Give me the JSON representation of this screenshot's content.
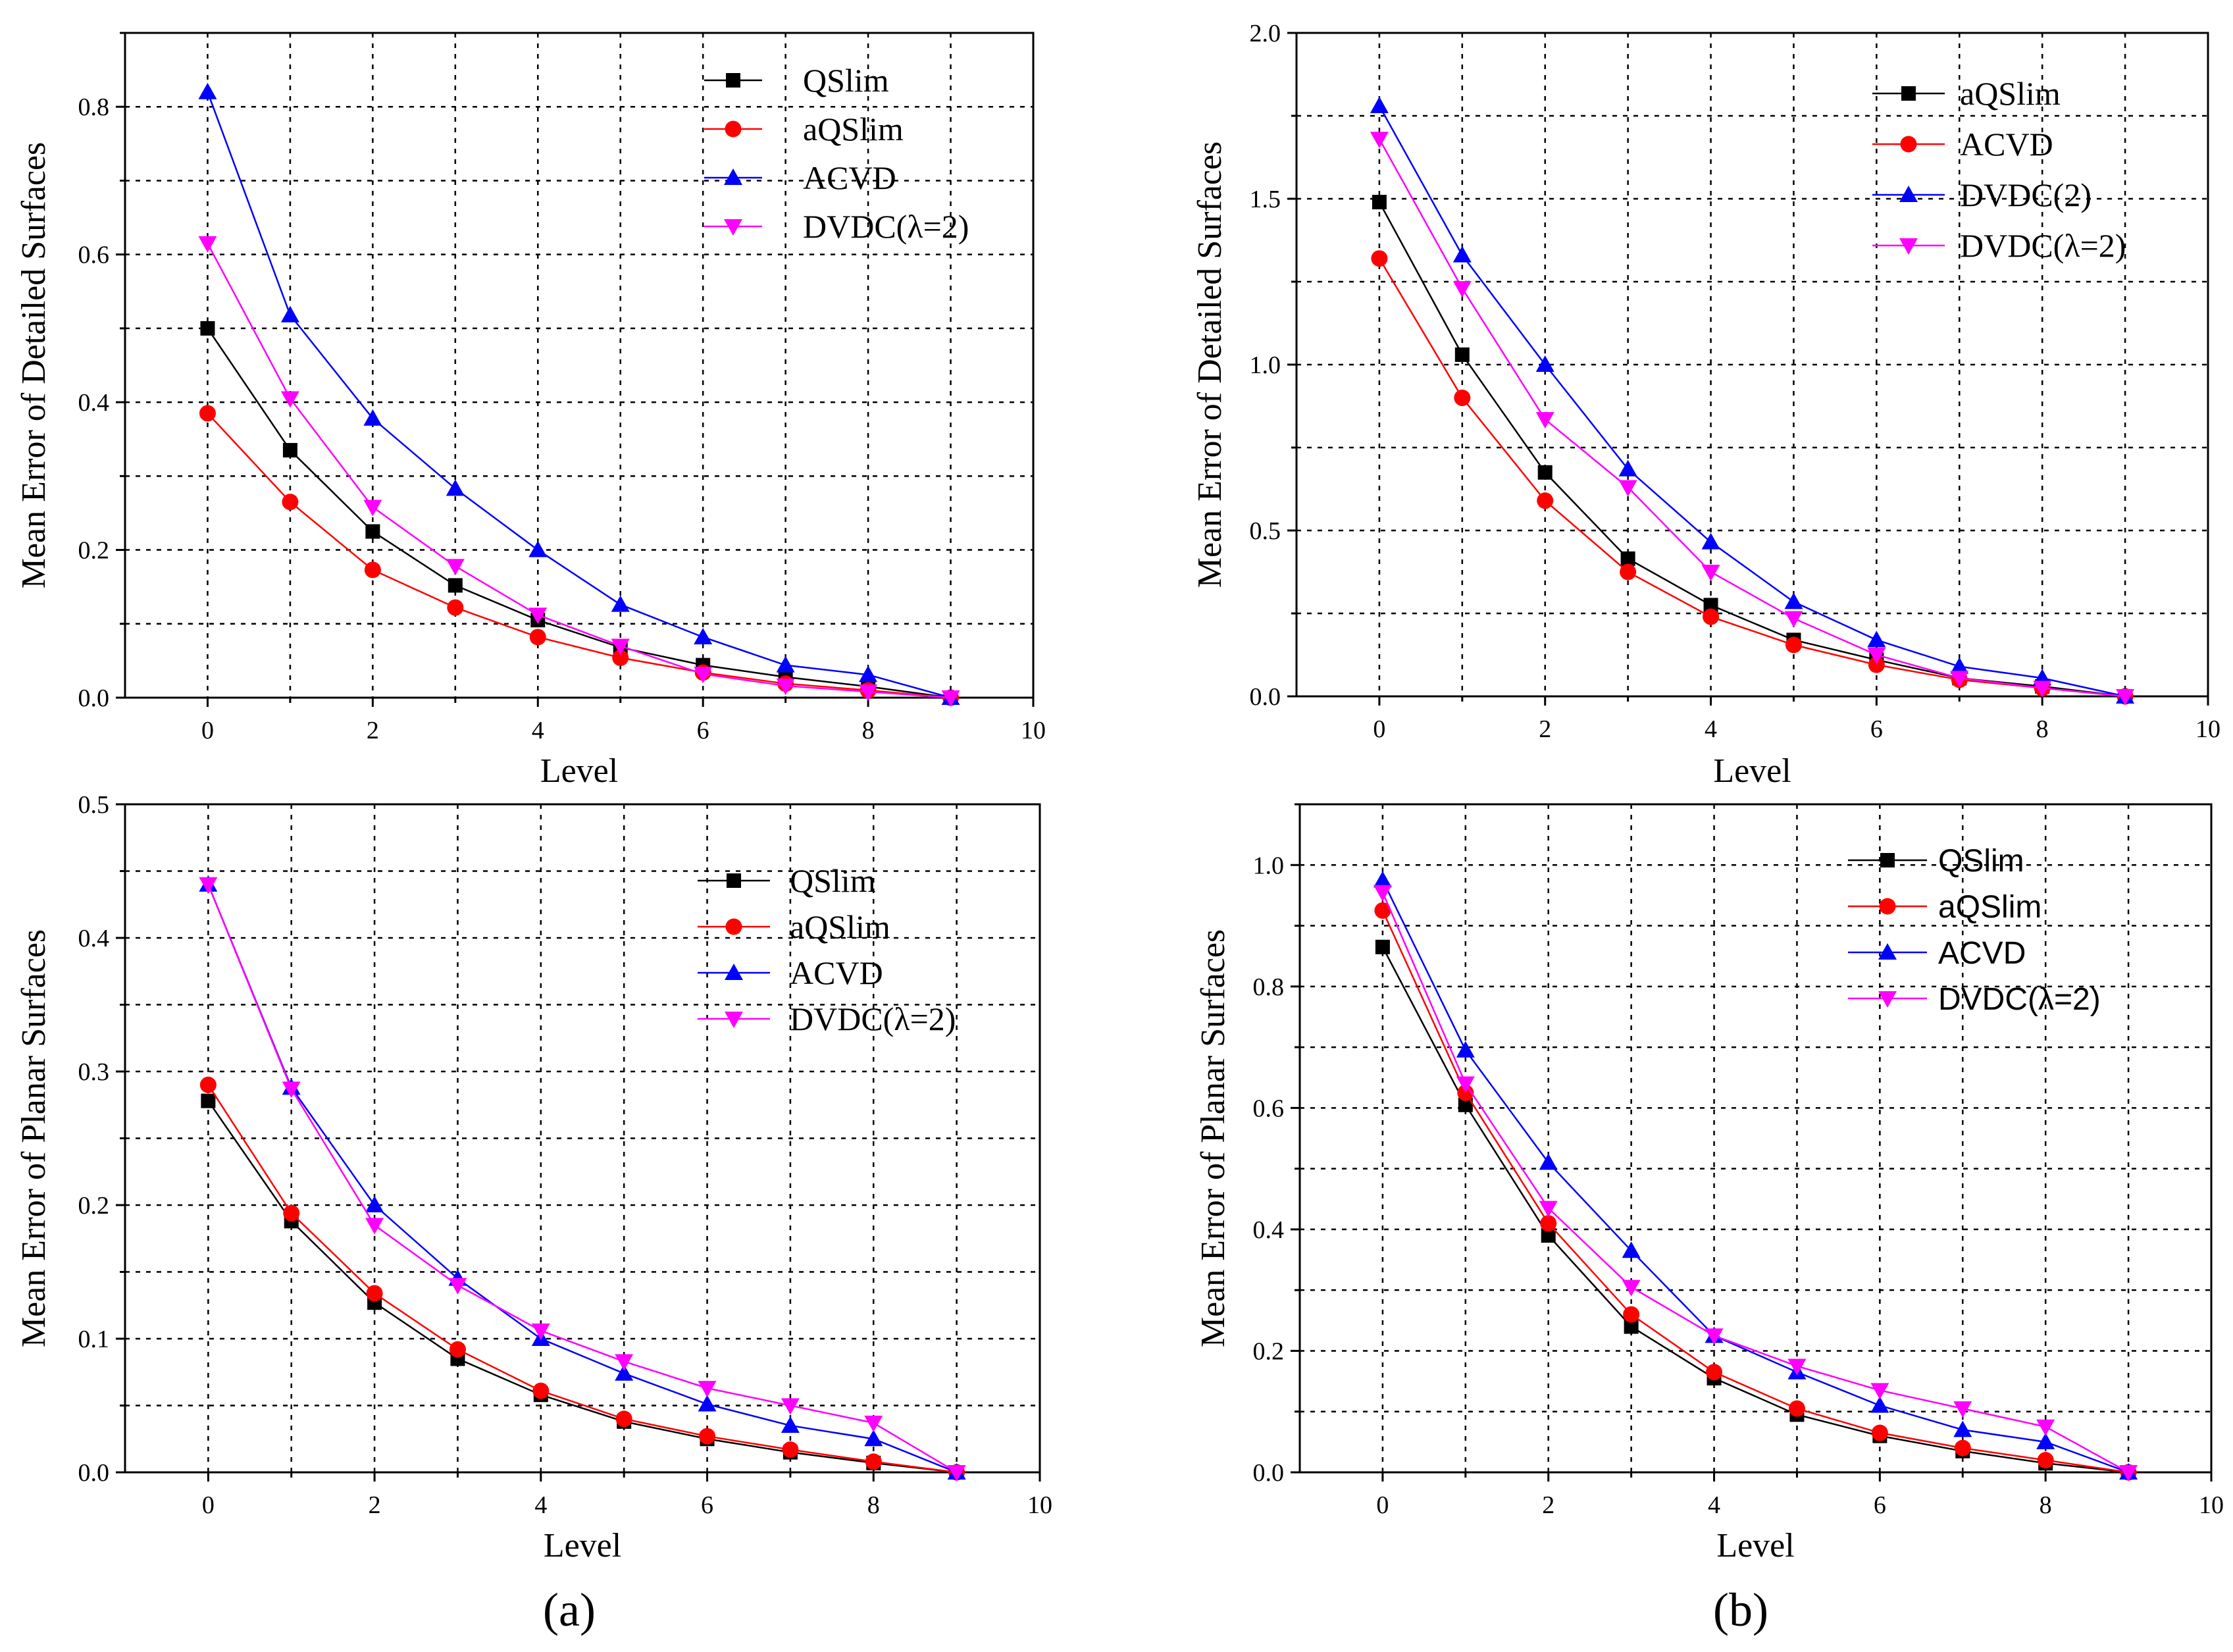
{
  "figure": {
    "panel_labels": [
      "(a)",
      "(b)"
    ],
    "panel_label_letters": [
      "a",
      "b"
    ]
  },
  "series_styles": {
    "QSlim": {
      "color": "#000000",
      "marker": "square"
    },
    "aQSlim": {
      "color": "#ff0000",
      "marker": "circle"
    },
    "ACVD": {
      "color": "#0000ff",
      "marker": "triangle-up"
    },
    "DVDC": {
      "color": "#ff00ff",
      "marker": "triangle-down"
    }
  },
  "chart_data": [
    {
      "id": "top-left",
      "type": "line",
      "title": "",
      "xlabel": "Level",
      "ylabel": "Mean Error of Detailed Surfaces",
      "xlim": [
        -1,
        10
      ],
      "ylim": [
        0,
        0.9
      ],
      "xticks": [
        0,
        2,
        4,
        6,
        8,
        10
      ],
      "yticks": [
        0.0,
        0.2,
        0.4,
        0.6,
        0.8
      ],
      "ytick_labels": [
        "0.0",
        "0.2",
        "0.4",
        "0.6",
        "0.8"
      ],
      "grid": true,
      "legend_position": "top-right",
      "x": [
        0,
        1,
        2,
        3,
        4,
        5,
        6,
        7,
        8,
        9
      ],
      "series": [
        {
          "name": "QSlim",
          "style": "QSlim",
          "values": [
            0.5,
            0.335,
            0.225,
            0.152,
            0.105,
            0.068,
            0.044,
            0.028,
            0.015,
            0.0
          ]
        },
        {
          "name": "aQSlim",
          "style": "aQSlim",
          "values": [
            0.385,
            0.265,
            0.173,
            0.122,
            0.082,
            0.054,
            0.034,
            0.019,
            0.01,
            0.0
          ]
        },
        {
          "name": "ACVD",
          "style": "ACVD",
          "values": [
            0.82,
            0.518,
            0.378,
            0.283,
            0.2,
            0.126,
            0.082,
            0.044,
            0.031,
            0.0
          ]
        },
        {
          "name": "DVDC(λ=2)",
          "style": "DVDC",
          "values": [
            0.615,
            0.405,
            0.258,
            0.178,
            0.112,
            0.07,
            0.032,
            0.016,
            0.008,
            0.0
          ]
        }
      ]
    },
    {
      "id": "top-right",
      "type": "line",
      "title": "",
      "xlabel": "Level",
      "ylabel": "Mean Error of Detailed Surfaces",
      "xlim": [
        -1,
        10
      ],
      "ylim": [
        0,
        2.0
      ],
      "xticks": [
        0,
        2,
        4,
        6,
        8,
        10
      ],
      "yticks": [
        0.0,
        0.5,
        1.0,
        1.5,
        2.0
      ],
      "ytick_labels": [
        "0.0",
        "0.5",
        "1.0",
        "1.5",
        "2.0"
      ],
      "grid": true,
      "legend_position": "top-right",
      "x": [
        0,
        1,
        2,
        3,
        4,
        5,
        6,
        7,
        8,
        9
      ],
      "series": [
        {
          "name": "aQSlim",
          "style": "QSlim",
          "values": [
            1.49,
            1.03,
            0.675,
            0.415,
            0.275,
            0.17,
            0.11,
            0.055,
            0.03,
            0.0
          ]
        },
        {
          "name": "ACVD",
          "style": "aQSlim",
          "values": [
            1.32,
            0.9,
            0.59,
            0.375,
            0.24,
            0.155,
            0.095,
            0.05,
            0.025,
            0.0
          ]
        },
        {
          "name": "DVDC(2)",
          "style": "ACVD",
          "values": [
            1.78,
            1.33,
            1.0,
            0.685,
            0.465,
            0.285,
            0.17,
            0.09,
            0.055,
            0.0
          ]
        },
        {
          "name": "DVDC(λ=2)",
          "style": "DVDC",
          "values": [
            1.68,
            1.23,
            0.835,
            0.63,
            0.375,
            0.235,
            0.125,
            0.055,
            0.025,
            0.0
          ]
        }
      ]
    },
    {
      "id": "bottom-left",
      "type": "line",
      "title": "",
      "xlabel": "Level",
      "ylabel": "Mean Error of Planar Surfaces",
      "xlim": [
        -1,
        10
      ],
      "ylim": [
        0,
        0.5
      ],
      "xticks": [
        0,
        2,
        4,
        6,
        8,
        10
      ],
      "yticks": [
        0.0,
        0.1,
        0.2,
        0.3,
        0.4,
        0.5
      ],
      "ytick_labels": [
        "0.0",
        "0.1",
        "0.2",
        "0.3",
        "0.4",
        "0.5"
      ],
      "grid": true,
      "legend_position": "top-right",
      "x": [
        0,
        1,
        2,
        3,
        4,
        5,
        6,
        7,
        8,
        9
      ],
      "series": [
        {
          "name": "QSlim",
          "style": "QSlim",
          "values": [
            0.278,
            0.188,
            0.127,
            0.085,
            0.058,
            0.038,
            0.025,
            0.015,
            0.007,
            0.0
          ]
        },
        {
          "name": "aQSlim",
          "style": "aQSlim",
          "values": [
            0.29,
            0.194,
            0.134,
            0.092,
            0.061,
            0.04,
            0.027,
            0.017,
            0.008,
            0.0
          ]
        },
        {
          "name": "ACVD",
          "style": "ACVD",
          "values": [
            0.44,
            0.288,
            0.2,
            0.145,
            0.1,
            0.074,
            0.051,
            0.035,
            0.025,
            0.0
          ]
        },
        {
          "name": "DVDC(λ=2)",
          "style": "DVDC",
          "values": [
            0.44,
            0.287,
            0.185,
            0.14,
            0.106,
            0.083,
            0.063,
            0.05,
            0.037,
            0.0
          ]
        }
      ]
    },
    {
      "id": "bottom-right",
      "type": "line",
      "title": "",
      "xlabel": "Level",
      "ylabel": "Mean Error of Planar Surfaces",
      "xlim": [
        -1,
        10
      ],
      "ylim": [
        0,
        1.1
      ],
      "xticks": [
        0,
        2,
        4,
        6,
        8,
        10
      ],
      "yticks": [
        0.0,
        0.2,
        0.4,
        0.6,
        0.8,
        1.0
      ],
      "ytick_labels": [
        "0.0",
        "0.2",
        "0.4",
        "0.6",
        "0.8",
        "1.0"
      ],
      "grid": true,
      "legend_position": "top-right",
      "x": [
        0,
        1,
        2,
        3,
        4,
        5,
        6,
        7,
        8,
        9
      ],
      "series": [
        {
          "name": "QSlim",
          "style": "QSlim",
          "values": [
            0.865,
            0.605,
            0.39,
            0.24,
            0.155,
            0.095,
            0.06,
            0.035,
            0.015,
            0.0
          ]
        },
        {
          "name": "aQSlim",
          "style": "aQSlim",
          "values": [
            0.925,
            0.625,
            0.41,
            0.26,
            0.165,
            0.105,
            0.065,
            0.04,
            0.02,
            0.0
          ]
        },
        {
          "name": "ACVD",
          "style": "ACVD",
          "values": [
            0.975,
            0.695,
            0.51,
            0.365,
            0.225,
            0.165,
            0.11,
            0.07,
            0.05,
            0.0
          ]
        },
        {
          "name": "DVDC(λ=2)",
          "style": "DVDC",
          "values": [
            0.955,
            0.64,
            0.435,
            0.305,
            0.225,
            0.175,
            0.135,
            0.105,
            0.075,
            0.0
          ]
        }
      ]
    }
  ]
}
